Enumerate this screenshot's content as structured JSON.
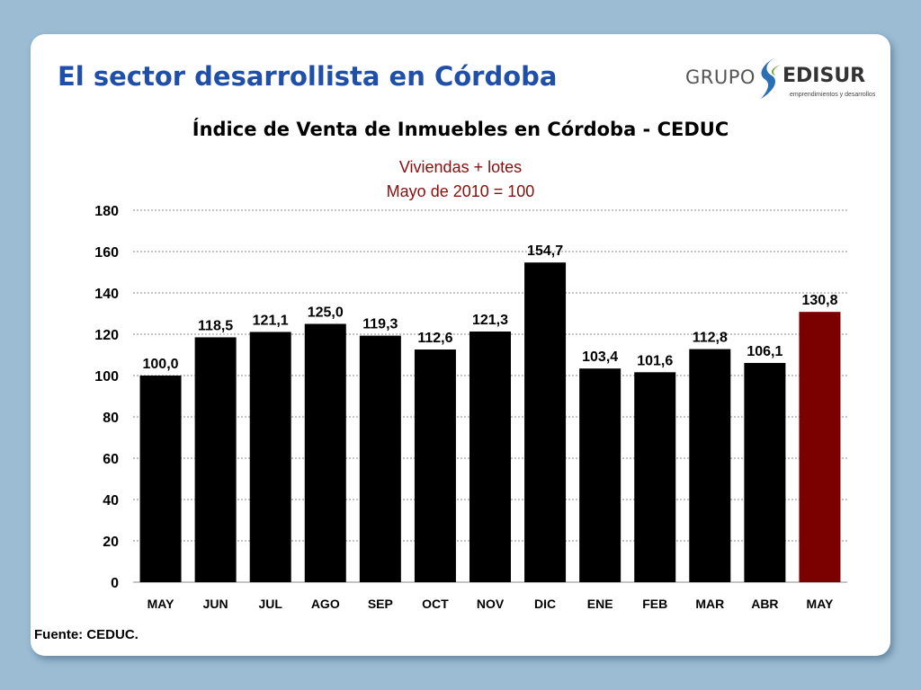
{
  "heading": "El sector desarrollista en Córdoba",
  "logo": {
    "grupo": "GRUPO",
    "edisur": "EDISUR",
    "tagline": "emprendimientos y desarrollos"
  },
  "source": "Fuente: CEDUC.",
  "colors": {
    "bar": "#000000",
    "highlight": "#7b0000",
    "heading": "#1f4fa8",
    "subtitle": "#8b0d0d"
  },
  "chart_data": {
    "type": "bar",
    "title": "Índice de Venta de Inmuebles en Córdoba - CEDUC",
    "subtitle": [
      "Viviendas + lotes",
      "Mayo de 2010 = 100"
    ],
    "categories": [
      "MAY",
      "JUN",
      "JUL",
      "AGO",
      "SEP",
      "OCT",
      "NOV",
      "DIC",
      "ENE",
      "FEB",
      "MAR",
      "ABR",
      "MAY"
    ],
    "values": [
      100.0,
      118.5,
      121.1,
      125.0,
      119.3,
      112.6,
      121.3,
      154.7,
      103.4,
      101.6,
      112.8,
      106.1,
      130.8
    ],
    "data_labels": [
      "100,0",
      "118,5",
      "121,1",
      "125,0",
      "119,3",
      "112,6",
      "121,3",
      "154,7",
      "103,4",
      "101,6",
      "112,8",
      "106,1",
      "130,8"
    ],
    "highlight_index": 12,
    "ylim": [
      0,
      180
    ],
    "yticks": [
      0,
      20,
      40,
      60,
      80,
      100,
      120,
      140,
      160,
      180
    ],
    "grid": true,
    "legend": "none",
    "xlabel": "",
    "ylabel": ""
  }
}
